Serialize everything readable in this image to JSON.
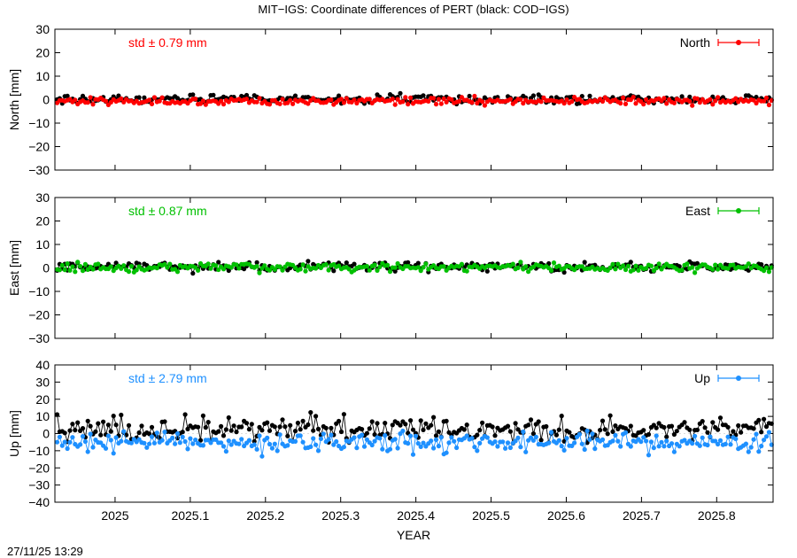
{
  "title": "MIT−IGS: Coordinate differences of PERT (black: COD−IGS)",
  "timestamp": "27/11/25 13:29",
  "xlabel": "YEAR",
  "chart_data": [
    {
      "type": "scatter",
      "component": "North",
      "ylabel": "North [mm]",
      "legend": "North",
      "std_label": "std ± 0.79 mm",
      "color": "#ff0000",
      "compare_color": "#000000",
      "xlim": [
        2024.92,
        2025.875
      ],
      "ylim": [
        -30,
        30
      ],
      "yticks": [
        -30,
        -20,
        -10,
        0,
        10,
        20,
        30
      ],
      "legend_position": "top-right",
      "main_mean": -0.6,
      "main_amp": 0.8,
      "compare_mean": 0.2,
      "compare_amp": 0.9
    },
    {
      "type": "scatter",
      "component": "East",
      "ylabel": "East [mm]",
      "legend": "East",
      "std_label": "std ± 0.87 mm",
      "color": "#00c000",
      "compare_color": "#000000",
      "xlim": [
        2024.92,
        2025.875
      ],
      "ylim": [
        -30,
        30
      ],
      "yticks": [
        -30,
        -20,
        -10,
        0,
        10,
        20,
        30
      ],
      "legend_position": "top-right",
      "main_mean": 0.2,
      "main_amp": 0.9,
      "compare_mean": 0.5,
      "compare_amp": 1.0
    },
    {
      "type": "scatter",
      "component": "Up",
      "ylabel": "Up [mm]",
      "legend": "Up",
      "std_label": "std ± 2.79 mm",
      "color": "#1e90ff",
      "compare_color": "#000000",
      "xlim": [
        2024.92,
        2025.875
      ],
      "ylim": [
        -40,
        40
      ],
      "yticks": [
        -40,
        -30,
        -20,
        -10,
        0,
        10,
        20,
        30,
        40
      ],
      "legend_position": "top-right",
      "main_mean": -5.0,
      "main_amp": 2.8,
      "compare_mean": 2.5,
      "compare_amp": 3.5
    }
  ],
  "xticks": [
    2025,
    2025.1,
    2025.2,
    2025.3,
    2025.4,
    2025.5,
    2025.6,
    2025.7,
    2025.8
  ]
}
